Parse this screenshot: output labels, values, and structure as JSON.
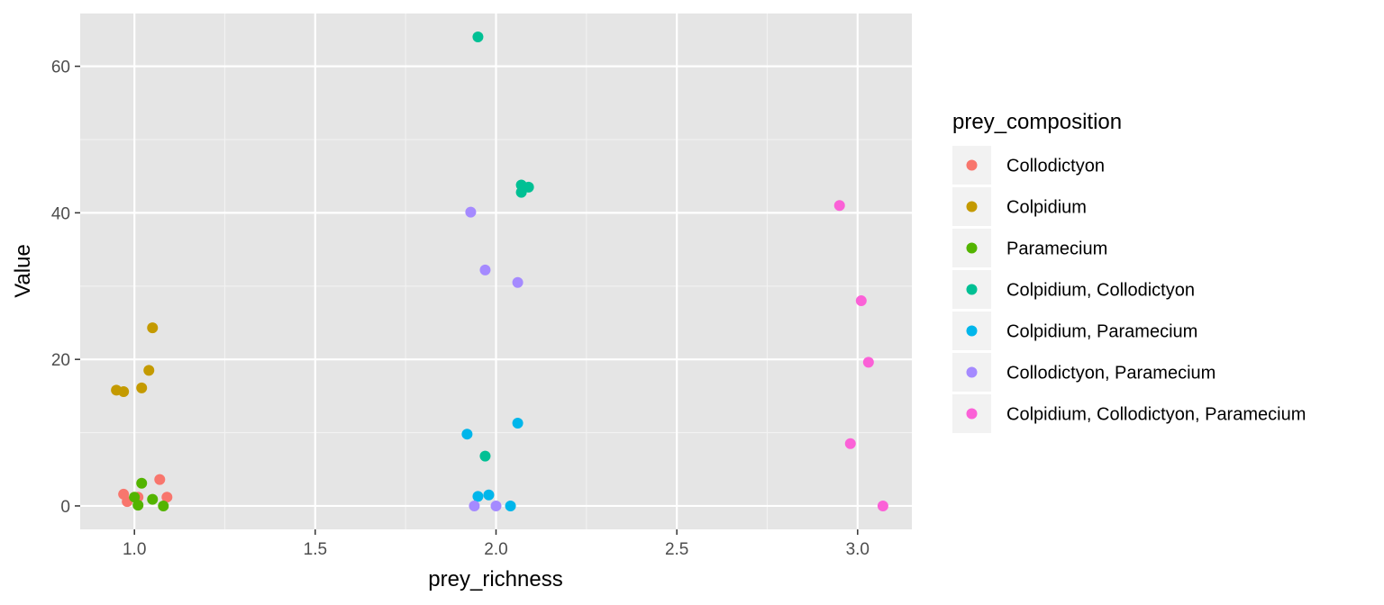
{
  "chart_data": {
    "type": "scatter",
    "xlabel": "prey_richness",
    "ylabel": "Value",
    "xlim": [
      0.85,
      3.15
    ],
    "ylim": [
      -3.2,
      67.2
    ],
    "x_ticks": [
      1.0,
      1.5,
      2.0,
      2.5,
      3.0
    ],
    "x_tick_labels": [
      "1.0",
      "1.5",
      "2.0",
      "2.5",
      "3.0"
    ],
    "y_ticks": [
      0,
      20,
      40,
      60
    ],
    "y_tick_labels": [
      "0",
      "20",
      "40",
      "60"
    ],
    "grid": true,
    "background": "#e5e5e5",
    "legend": {
      "title": "prey_composition",
      "placement": "right"
    },
    "series": [
      {
        "name": "Collodictyon",
        "color": "#F8766D",
        "points": [
          [
            0.97,
            1.6
          ],
          [
            0.98,
            0.6
          ],
          [
            1.01,
            1.2
          ],
          [
            1.07,
            3.6
          ],
          [
            1.09,
            1.2
          ]
        ]
      },
      {
        "name": "Colpidium",
        "color": "#C49A00",
        "points": [
          [
            0.95,
            15.8
          ],
          [
            0.97,
            15.6
          ],
          [
            1.02,
            16.1
          ],
          [
            1.04,
            18.5
          ],
          [
            1.05,
            24.3
          ]
        ]
      },
      {
        "name": "Paramecium",
        "color": "#53B400",
        "points": [
          [
            1.0,
            1.2
          ],
          [
            1.01,
            0.1
          ],
          [
            1.02,
            3.1
          ],
          [
            1.05,
            0.9
          ],
          [
            1.08,
            0.0
          ]
        ]
      },
      {
        "name": "Colpidium, Collodictyon",
        "color": "#00C094",
        "points": [
          [
            1.95,
            64.0
          ],
          [
            1.97,
            6.8
          ],
          [
            2.07,
            43.8
          ],
          [
            2.07,
            42.8
          ],
          [
            2.09,
            43.5
          ]
        ]
      },
      {
        "name": "Colpidium, Paramecium",
        "color": "#00B6EB",
        "points": [
          [
            1.92,
            9.8
          ],
          [
            1.95,
            1.3
          ],
          [
            1.98,
            1.5
          ],
          [
            2.04,
            0.0
          ],
          [
            2.06,
            11.3
          ]
        ]
      },
      {
        "name": "Collodictyon, Paramecium",
        "color": "#A58AFF",
        "points": [
          [
            1.93,
            40.1
          ],
          [
            1.94,
            0.0
          ],
          [
            1.97,
            32.2
          ],
          [
            2.0,
            0.0
          ],
          [
            2.06,
            30.5
          ]
        ]
      },
      {
        "name": "Colpidium, Collodictyon, Paramecium",
        "color": "#FB61D7",
        "points": [
          [
            2.95,
            41.0
          ],
          [
            2.98,
            8.5
          ],
          [
            3.01,
            28.0
          ],
          [
            3.03,
            19.6
          ],
          [
            3.07,
            0.0
          ]
        ]
      }
    ]
  }
}
